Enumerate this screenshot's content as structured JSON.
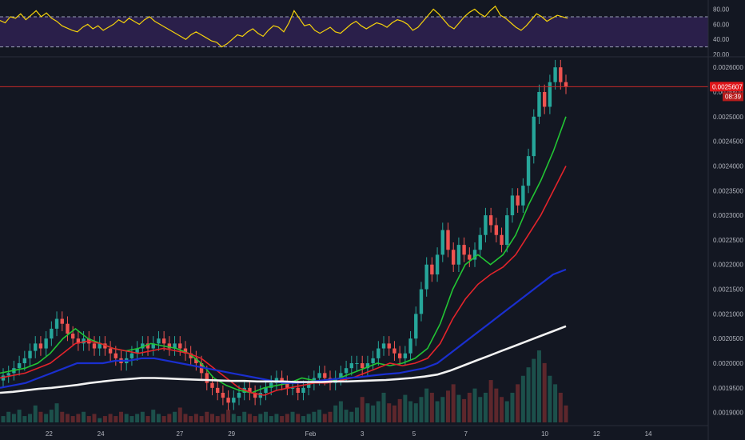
{
  "chart_data": [
    {
      "type": "line",
      "panel": "rsi",
      "ylim": [
        20,
        88
      ],
      "y_ticks": [
        20,
        40,
        60,
        80
      ],
      "y_tick_labels": [
        "20.00",
        "40.00",
        "60.00",
        "80.00"
      ],
      "bands": {
        "upper": 70,
        "lower": 30,
        "fill": "#2a1f4a"
      },
      "series": [
        {
          "color": "#f5d20a",
          "values": [
            65,
            62,
            70,
            68,
            74,
            66,
            72,
            78,
            70,
            75,
            68,
            64,
            58,
            55,
            52,
            50,
            56,
            60,
            54,
            58,
            52,
            56,
            60,
            66,
            62,
            68,
            64,
            60,
            66,
            70,
            64,
            60,
            56,
            52,
            48,
            44,
            40,
            46,
            50,
            46,
            42,
            38,
            36,
            30,
            34,
            40,
            46,
            44,
            50,
            54,
            48,
            44,
            52,
            58,
            56,
            50,
            62,
            78,
            68,
            58,
            60,
            52,
            48,
            52,
            56,
            50,
            48,
            54,
            60,
            64,
            58,
            54,
            58,
            62,
            60,
            56,
            62,
            66,
            64,
            60,
            52,
            56,
            64,
            72,
            80,
            74,
            66,
            58,
            54,
            62,
            70,
            76,
            80,
            74,
            70,
            78,
            84,
            72,
            68,
            62,
            56,
            52,
            58,
            66,
            74,
            70,
            64,
            68,
            72,
            70,
            68
          ]
        }
      ]
    },
    {
      "type": "candlestick",
      "panel": "price",
      "ylim": [
        0.00188,
        0.00261
      ],
      "y_ticks": [
        0.0019,
        0.00195,
        0.002,
        0.00205,
        0.0021,
        0.00215,
        0.0022,
        0.00225,
        0.0023,
        0.00235,
        0.0024,
        0.00245,
        0.0025,
        0.00255,
        0.0026
      ],
      "y_tick_labels": [
        "0.0019000",
        "0.0019500",
        "0.0020000",
        "0.0020500",
        "0.0021000",
        "0.0021500",
        "0.0022000",
        "0.0022500",
        "0.0023000",
        "0.0023500",
        "0.0024000",
        "0.0024500",
        "0.0025000",
        "0.0025500",
        "0.0026000"
      ],
      "x_tick_labels": [
        "22",
        "24",
        "27",
        "29",
        "Feb",
        "3",
        "5",
        "7",
        "10",
        "12",
        "14"
      ],
      "x_tick_index": [
        19,
        38,
        67,
        86,
        115,
        134,
        153,
        172,
        201,
        220,
        239
      ],
      "x_range_index": [
        1,
        261
      ],
      "current_price": 0.0025607,
      "current_price_label": "0.0025607",
      "countdown_label": "08:39",
      "close": [
        0.001975,
        0.00198,
        0.00199,
        0.002,
        0.00201,
        0.002025,
        0.00204,
        0.00203,
        0.00205,
        0.00207,
        0.00209,
        0.00208,
        0.00206,
        0.00205,
        0.00204,
        0.00205,
        0.00204,
        0.00203,
        0.00204,
        0.00203,
        0.00202,
        0.00201,
        0.002,
        0.00201,
        0.00202,
        0.00203,
        0.00204,
        0.00203,
        0.00204,
        0.00205,
        0.00204,
        0.00203,
        0.00204,
        0.00203,
        0.00202,
        0.00201,
        0.002,
        0.00198,
        0.00196,
        0.00195,
        0.00194,
        0.00193,
        0.00192,
        0.00193,
        0.00194,
        0.00195,
        0.00194,
        0.00193,
        0.00194,
        0.00195,
        0.00196,
        0.00197,
        0.00196,
        0.00195,
        0.00195,
        0.00194,
        0.00195,
        0.00196,
        0.00197,
        0.00198,
        0.00197,
        0.00196,
        0.00197,
        0.00198,
        0.00199,
        0.002,
        0.002,
        0.00199,
        0.002,
        0.00201,
        0.00203,
        0.00204,
        0.00203,
        0.00202,
        0.00201,
        0.00202,
        0.00205,
        0.0021,
        0.00215,
        0.0022,
        0.00218,
        0.00222,
        0.00227,
        0.00223,
        0.0022,
        0.00224,
        0.00222,
        0.00221,
        0.00223,
        0.00226,
        0.0023,
        0.00228,
        0.00226,
        0.00224,
        0.0023,
        0.00234,
        0.00232,
        0.00236,
        0.00242,
        0.0025,
        0.00255,
        0.00252,
        0.00257,
        0.0026,
        0.00257,
        0.0025607
      ],
      "series": [
        {
          "name": "EMA fast",
          "color": "#22c534",
          "values": [
            0.00198,
            0.001985,
            0.00199,
            0.002,
            0.00202,
            0.00205,
            0.00207,
            0.00205,
            0.00204,
            0.00203,
            0.002025,
            0.00203,
            0.00204,
            0.002035,
            0.00203,
            0.00202,
            0.002,
            0.00197,
            0.001955,
            0.001945,
            0.00194,
            0.00195,
            0.001955,
            0.00196,
            0.00197,
            0.001965,
            0.00196,
            0.00197,
            0.00198,
            0.00199,
            0.002,
            0.001995,
            0.002,
            0.00201,
            0.00203,
            0.00208,
            0.00215,
            0.0022,
            0.00222,
            0.0022,
            0.00222,
            0.00226,
            0.00232,
            0.00237,
            0.00243,
            0.0025
          ]
        },
        {
          "name": "EMA slow",
          "color": "#e3242b",
          "values": [
            0.00197,
            0.001975,
            0.00198,
            0.00199,
            0.002,
            0.00202,
            0.00204,
            0.002045,
            0.00204,
            0.00203,
            0.002025,
            0.00202,
            0.002025,
            0.00203,
            0.002025,
            0.00202,
            0.00201,
            0.00199,
            0.00197,
            0.00195,
            0.00194,
            0.001935,
            0.001945,
            0.00195,
            0.001955,
            0.00196,
            0.00196,
            0.001965,
            0.00197,
            0.00198,
            0.00199,
            0.002,
            0.001995,
            0.002,
            0.00201,
            0.00204,
            0.00209,
            0.00213,
            0.00216,
            0.00218,
            0.002195,
            0.00222,
            0.00226,
            0.0023,
            0.00235,
            0.0024
          ]
        },
        {
          "name": "EMA 100",
          "color": "#1a2fcf",
          "values": [
            0.00195,
            0.001955,
            0.00196,
            0.00197,
            0.00198,
            0.00199,
            0.002,
            0.002,
            0.002,
            0.002005,
            0.002005,
            0.00201,
            0.00201,
            0.002005,
            0.002,
            0.001995,
            0.00199,
            0.001985,
            0.00198,
            0.001975,
            0.00197,
            0.001965,
            0.00196,
            0.00196,
            0.001962,
            0.001965,
            0.001968,
            0.00197,
            0.001972,
            0.001975,
            0.001978,
            0.00198,
            0.001985,
            0.00199,
            0.002,
            0.00202,
            0.00204,
            0.00206,
            0.00208,
            0.0021,
            0.00212,
            0.00214,
            0.00216,
            0.00218,
            0.00219
          ]
        },
        {
          "name": "EMA 200",
          "color": "#f2f2f2",
          "values": [
            0.00194,
            0.001942,
            0.001945,
            0.001948,
            0.00195,
            0.001953,
            0.001956,
            0.00196,
            0.001963,
            0.001966,
            0.001968,
            0.00197,
            0.00197,
            0.001969,
            0.001968,
            0.001967,
            0.001966,
            0.001965,
            0.001964,
            0.001964,
            0.001963,
            0.001963,
            0.001963,
            0.001962,
            0.001962,
            0.001962,
            0.001963,
            0.001963,
            0.001964,
            0.001965,
            0.001966,
            0.001968,
            0.00197,
            0.001973,
            0.001977,
            0.001985,
            0.001995,
            0.002005,
            0.002015,
            0.002025,
            0.002035,
            0.002045,
            0.002055,
            0.002065,
            0.002075
          ]
        }
      ],
      "volume": [
        3,
        5,
        4,
        6,
        3,
        4,
        8,
        5,
        4,
        6,
        9,
        5,
        4,
        3,
        4,
        5,
        3,
        4,
        2,
        3,
        4,
        3,
        5,
        4,
        3,
        4,
        5,
        3,
        6,
        4,
        3,
        4,
        5,
        7,
        4,
        3,
        4,
        3,
        5,
        4,
        3,
        4,
        6,
        4,
        3,
        5,
        4,
        3,
        4,
        5,
        3,
        4,
        3,
        4,
        5,
        4,
        3,
        4,
        5,
        6,
        4,
        5,
        8,
        10,
        6,
        5,
        7,
        12,
        9,
        8,
        10,
        14,
        9,
        8,
        11,
        13,
        10,
        9,
        12,
        16,
        14,
        10,
        12,
        15,
        18,
        13,
        11,
        14,
        16,
        12,
        14,
        20,
        16,
        12,
        10,
        14,
        18,
        22,
        26,
        30,
        34,
        28,
        22,
        18,
        14,
        8
      ]
    }
  ]
}
